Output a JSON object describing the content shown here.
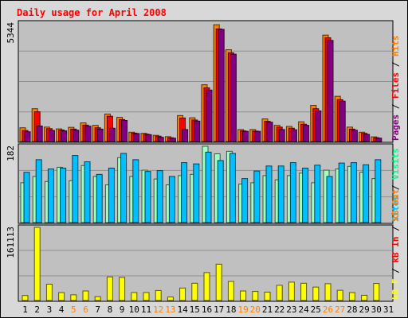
{
  "chart_data": {
    "title": "Daily usage for April 2008",
    "x": [
      "1",
      "2",
      "3",
      "4",
      "5",
      "6",
      "7",
      "8",
      "9",
      "10",
      "11",
      "12",
      "13",
      "14",
      "15",
      "16",
      "17",
      "18",
      "19",
      "20",
      "21",
      "22",
      "23",
      "24",
      "25",
      "26",
      "27",
      "28",
      "29",
      "30",
      "31"
    ],
    "weekend_days": [
      "5",
      "6",
      "12",
      "13",
      "19",
      "20",
      "26",
      "27"
    ],
    "panels": [
      {
        "name": "pages-files-hits",
        "type": "bar",
        "ymax_label": "5344",
        "ymax": 5344,
        "ylabel_parts": [
          "Pages",
          "Files",
          "Hits"
        ],
        "ylabel_colors": [
          "#800080",
          "#ff0000",
          "#ff8000"
        ],
        "series": [
          {
            "name": "Hits",
            "color": "#ff8000",
            "values": [
              620,
              1480,
              650,
              570,
              640,
              840,
              730,
              1240,
              1090,
              420,
              370,
              280,
              220,
              1170,
              1070,
              2560,
              5270,
              4140,
              540,
              540,
              1020,
              730,
              680,
              890,
              1630,
              4800,
              2040,
              650,
              420,
              210,
              0
            ]
          },
          {
            "name": "Files",
            "color": "#ff0000",
            "values": [
              500,
              1340,
              580,
              520,
              560,
              740,
              620,
              1140,
              990,
              380,
              330,
              240,
              170,
              1060,
              970,
              2420,
              5080,
              4000,
              480,
              470,
              910,
              650,
              600,
              780,
              1480,
              4680,
              1890,
              560,
              370,
              170,
              0
            ]
          },
          {
            "name": "Pages",
            "color": "#800080",
            "values": [
              440,
              700,
              500,
              480,
              510,
              690,
              560,
              600,
              950,
              360,
              310,
              190,
              150,
              540,
              920,
              2320,
              5060,
              3940,
              460,
              460,
              870,
              540,
              530,
              730,
              1380,
              4560,
              1820,
              510,
              320,
              150,
              0
            ]
          }
        ]
      },
      {
        "name": "visits-sites",
        "type": "bar",
        "ymax_label": "182",
        "ymax": 182,
        "ylabel_parts": [
          "Sites",
          "Visits"
        ],
        "ylabel_colors": [
          "#00bfff",
          "#00ff80"
        ],
        "series": [
          {
            "name": "Visits",
            "color": "#a0ffc0",
            "values": [
              95,
              110,
              98,
              132,
              100,
              136,
              110,
              90,
              155,
              110,
              125,
              104,
              90,
              112,
              115,
              182,
              164,
              170,
              92,
              95,
              112,
              102,
              112,
              118,
              95,
              125,
              128,
              134,
              120,
              105,
              0
            ]
          },
          {
            "name": "Sites",
            "color": "#00bfff",
            "values": [
              120,
              150,
              128,
              130,
              160,
              145,
              115,
              130,
              165,
              150,
              122,
              124,
              110,
              143,
              140,
              168,
              148,
              165,
              105,
              123,
              135,
              135,
              143,
              130,
              137,
              110,
              142,
              143,
              138,
              150,
              0
            ]
          }
        ]
      },
      {
        "name": "kbout-kbin-kbf",
        "type": "bar",
        "ymax_label": "161113",
        "ymax": 161113,
        "ylabel_parts": [
          "kB F",
          "kB In",
          "kB Out"
        ],
        "ylabel_colors": [
          "#ffff00",
          "#ff0000",
          "#ff8000"
        ],
        "series": [
          {
            "name": "kB F",
            "color": "#ffff00",
            "values": [
              11000,
              161113,
              36000,
              17500,
              12500,
              21000,
              8500,
              52000,
              51000,
              17500,
              17500,
              22000,
              7800,
              27500,
              38000,
              61500,
              80000,
              42000,
              21000,
              20000,
              18500,
              33500,
              40500,
              38000,
              29500,
              37000,
              22500,
              17500,
              11500,
              37500,
              0
            ]
          }
        ]
      }
    ]
  }
}
